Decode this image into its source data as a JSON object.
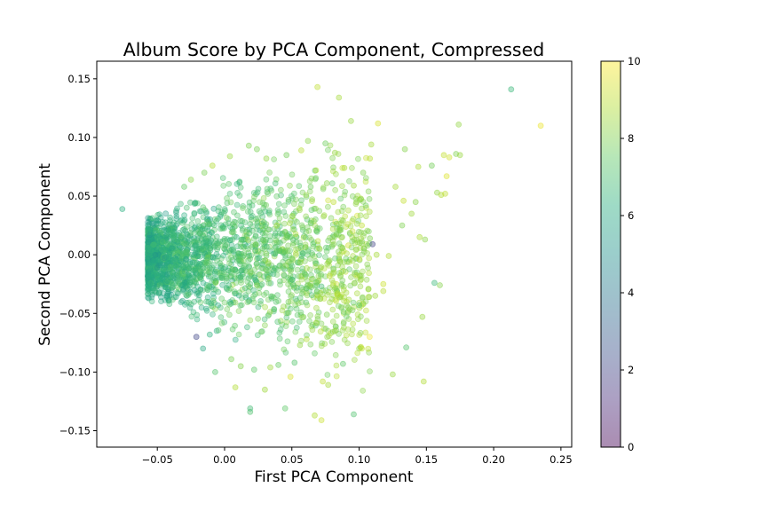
{
  "chart_data": {
    "type": "scatter",
    "title": "Album Score by PCA Component, Compressed",
    "xlabel": "First PCA Component",
    "ylabel": "Second PCA Component",
    "xlim": [
      -0.095,
      0.258
    ],
    "ylim": [
      -0.164,
      0.165
    ],
    "xticks": [
      {
        "value": -0.05,
        "label": "−0.05"
      },
      {
        "value": 0.0,
        "label": "0.00"
      },
      {
        "value": 0.05,
        "label": "0.05"
      },
      {
        "value": 0.1,
        "label": "0.10"
      },
      {
        "value": 0.15,
        "label": "0.15"
      },
      {
        "value": 0.2,
        "label": "0.20"
      },
      {
        "value": 0.25,
        "label": "0.25"
      }
    ],
    "yticks": [
      {
        "value": -0.15,
        "label": "−0.15"
      },
      {
        "value": -0.1,
        "label": "−0.10"
      },
      {
        "value": -0.05,
        "label": "−0.05"
      },
      {
        "value": 0.0,
        "label": "0.00"
      },
      {
        "value": 0.05,
        "label": "0.05"
      },
      {
        "value": 0.1,
        "label": "0.10"
      },
      {
        "value": 0.15,
        "label": "0.15"
      }
    ],
    "grid": false,
    "colorbar": {
      "colormap": "viridis",
      "range": [
        0,
        10
      ],
      "ticks": [
        {
          "value": 0,
          "label": "0"
        },
        {
          "value": 2,
          "label": "2"
        },
        {
          "value": 4,
          "label": "4"
        },
        {
          "value": 6,
          "label": "6"
        },
        {
          "value": 8,
          "label": "8"
        },
        {
          "value": 10,
          "label": "10"
        }
      ]
    },
    "marker_alpha": 0.35,
    "points": [
      [
        -0.076,
        0.039,
        6.3
      ],
      [
        0.213,
        0.141,
        6.6
      ],
      [
        0.235,
        0.11,
        9.7
      ],
      [
        0.069,
        0.143,
        9.0
      ],
      [
        0.085,
        0.134,
        8.6
      ],
      [
        0.094,
        0.114,
        8.4
      ],
      [
        0.114,
        0.112,
        9.4
      ],
      [
        0.174,
        0.111,
        8.3
      ],
      [
        0.172,
        0.086,
        8.0
      ],
      [
        0.175,
        0.085,
        8.4
      ],
      [
        0.163,
        0.085,
        9.1
      ],
      [
        0.154,
        0.076,
        7.8
      ],
      [
        0.167,
        0.083,
        9.3
      ],
      [
        0.134,
        0.09,
        8.1
      ],
      [
        0.109,
        0.094,
        8.6
      ],
      [
        0.144,
        0.075,
        8.7
      ],
      [
        0.165,
        0.067,
        9.5
      ],
      [
        0.158,
        0.053,
        8.3
      ],
      [
        0.161,
        0.051,
        8.8
      ],
      [
        0.164,
        0.052,
        9.0
      ],
      [
        0.142,
        0.045,
        8.2
      ],
      [
        0.133,
        0.046,
        9.1
      ],
      [
        0.127,
        0.058,
        8.6
      ],
      [
        0.139,
        0.035,
        8.5
      ],
      [
        0.132,
        0.025,
        8.0
      ],
      [
        0.145,
        0.015,
        8.7
      ],
      [
        0.149,
        0.013,
        8.2
      ],
      [
        0.11,
        0.009,
        2.0
      ],
      [
        0.156,
        -0.024,
        6.6
      ],
      [
        0.16,
        -0.026,
        8.1
      ],
      [
        0.147,
        -0.053,
        8.4
      ],
      [
        0.135,
        -0.079,
        7.2
      ],
      [
        0.125,
        -0.102,
        8.4
      ],
      [
        0.148,
        -0.108,
        8.8
      ],
      [
        0.102,
        -0.08,
        9.0
      ],
      [
        0.096,
        -0.136,
        7.1
      ],
      [
        0.067,
        -0.137,
        8.8
      ],
      [
        0.072,
        -0.141,
        9.2
      ],
      [
        0.045,
        -0.131,
        7.4
      ],
      [
        0.019,
        -0.134,
        7.1
      ],
      [
        0.019,
        -0.131,
        6.8
      ],
      [
        0.077,
        -0.111,
        8.6
      ],
      [
        0.073,
        -0.108,
        9.0
      ],
      [
        0.049,
        -0.104,
        9.4
      ],
      [
        0.03,
        -0.115,
        8.5
      ],
      [
        0.008,
        -0.113,
        8.8
      ],
      [
        -0.007,
        -0.1,
        7.2
      ],
      [
        -0.021,
        -0.07,
        2.1
      ],
      [
        -0.011,
        -0.068,
        6.4
      ],
      [
        -0.016,
        -0.08,
        6.0
      ],
      [
        0.088,
        -0.093,
        7.4
      ],
      [
        0.082,
        -0.065,
        8.5
      ],
      [
        0.092,
        -0.045,
        8.1
      ],
      [
        0.1,
        -0.043,
        7.3
      ],
      [
        0.112,
        -0.035,
        8.5
      ],
      [
        0.118,
        -0.031,
        8.9
      ],
      [
        0.118,
        -0.025,
        9.2
      ],
      [
        0.107,
        -0.029,
        8.4
      ],
      [
        0.122,
        -0.001,
        8.8
      ],
      [
        0.113,
        0.0,
        8.6
      ],
      [
        0.108,
        0.014,
        8.0
      ],
      [
        0.102,
        0.025,
        9.0
      ],
      [
        0.098,
        0.045,
        8.3
      ],
      [
        0.096,
        0.059,
        8.5
      ],
      [
        0.103,
        0.07,
        8.0
      ],
      [
        0.108,
        0.082,
        8.9
      ],
      [
        0.089,
        0.074,
        8.7
      ],
      [
        0.082,
        0.087,
        8.4
      ],
      [
        0.075,
        0.095,
        7.7
      ],
      [
        0.062,
        0.097,
        8.2
      ],
      [
        0.057,
        0.089,
        8.9
      ],
      [
        0.046,
        0.085,
        7.8
      ],
      [
        0.031,
        0.082,
        8.3
      ],
      [
        0.024,
        0.09,
        7.9
      ],
      [
        0.018,
        0.093,
        8.0
      ],
      [
        0.004,
        0.084,
        8.4
      ],
      [
        -0.009,
        0.076,
        8.8
      ],
      [
        -0.015,
        0.07,
        7.9
      ],
      [
        -0.025,
        0.064,
        8.2
      ],
      [
        -0.03,
        0.058,
        7.5
      ],
      [
        0.056,
        -0.077,
        8.3
      ],
      [
        0.061,
        -0.072,
        8.8
      ],
      [
        0.052,
        -0.092,
        7.2
      ],
      [
        0.04,
        -0.094,
        7.6
      ],
      [
        0.034,
        -0.096,
        8.5
      ],
      [
        0.022,
        -0.098,
        7.4
      ],
      [
        0.012,
        -0.095,
        8.1
      ],
      [
        0.005,
        -0.089,
        7.9
      ],
      [
        0.068,
        -0.058,
        8.5
      ],
      [
        0.076,
        -0.051,
        8.0
      ],
      [
        0.084,
        -0.033,
        8.7
      ],
      [
        0.072,
        -0.027,
        6.8
      ],
      [
        0.078,
        -0.018,
        9.1
      ],
      [
        0.086,
        -0.006,
        8.1
      ],
      [
        0.092,
        0.008,
        9.3
      ],
      [
        0.088,
        0.029,
        8.3
      ],
      [
        0.081,
        0.045,
        9.0
      ],
      [
        0.076,
        0.061,
        8.2
      ],
      [
        0.068,
        0.072,
        8.7
      ],
      [
        0.064,
        0.058,
        7.7
      ]
    ]
  }
}
